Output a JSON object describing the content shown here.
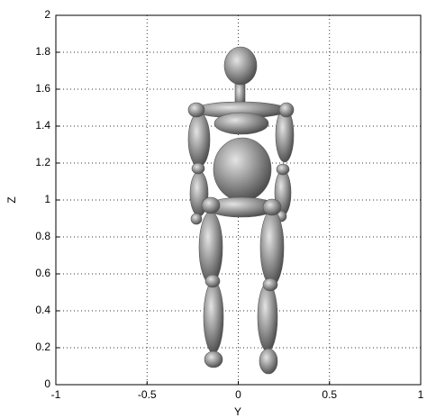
{
  "chart_data": {
    "type": "surface",
    "xlabel": "Y",
    "ylabel": "Z",
    "xlim": [
      -1,
      1
    ],
    "xticks": [
      -1,
      -0.5,
      0,
      0.5,
      1
    ],
    "ylim": [
      0,
      2
    ],
    "yticks": [
      0,
      0.2,
      0.4,
      0.6,
      0.8,
      1,
      1.2,
      1.4,
      1.6,
      1.8,
      2
    ],
    "grid": true
  }
}
